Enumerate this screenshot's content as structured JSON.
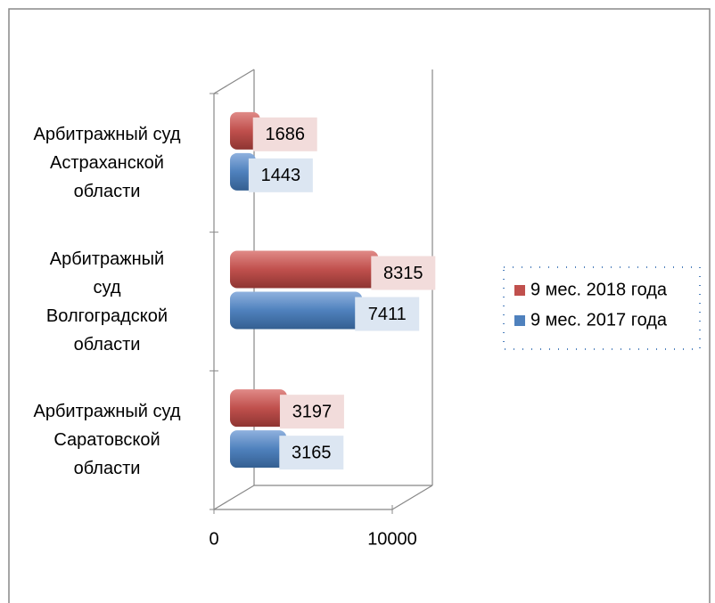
{
  "chart_data": {
    "type": "bar",
    "orientation": "horizontal",
    "categories": [
      "Арбитражный суд Астраханской области",
      "Арбитражный суд Волгоградской области",
      "Арбитражный суд Саратовской области"
    ],
    "series": [
      {
        "name": "9 мес. 2018 года",
        "color": "#c0504d",
        "label_fill": "#f2dcdb",
        "values": [
          1686,
          8315,
          3197
        ]
      },
      {
        "name": "9 мес. 2017 года",
        "color": "#4f81bd",
        "label_fill": "#dce6f2",
        "values": [
          1443,
          7411,
          3165
        ]
      }
    ],
    "xlim": [
      0,
      10000
    ],
    "xticks": [
      0,
      10000
    ],
    "legend": "right"
  }
}
